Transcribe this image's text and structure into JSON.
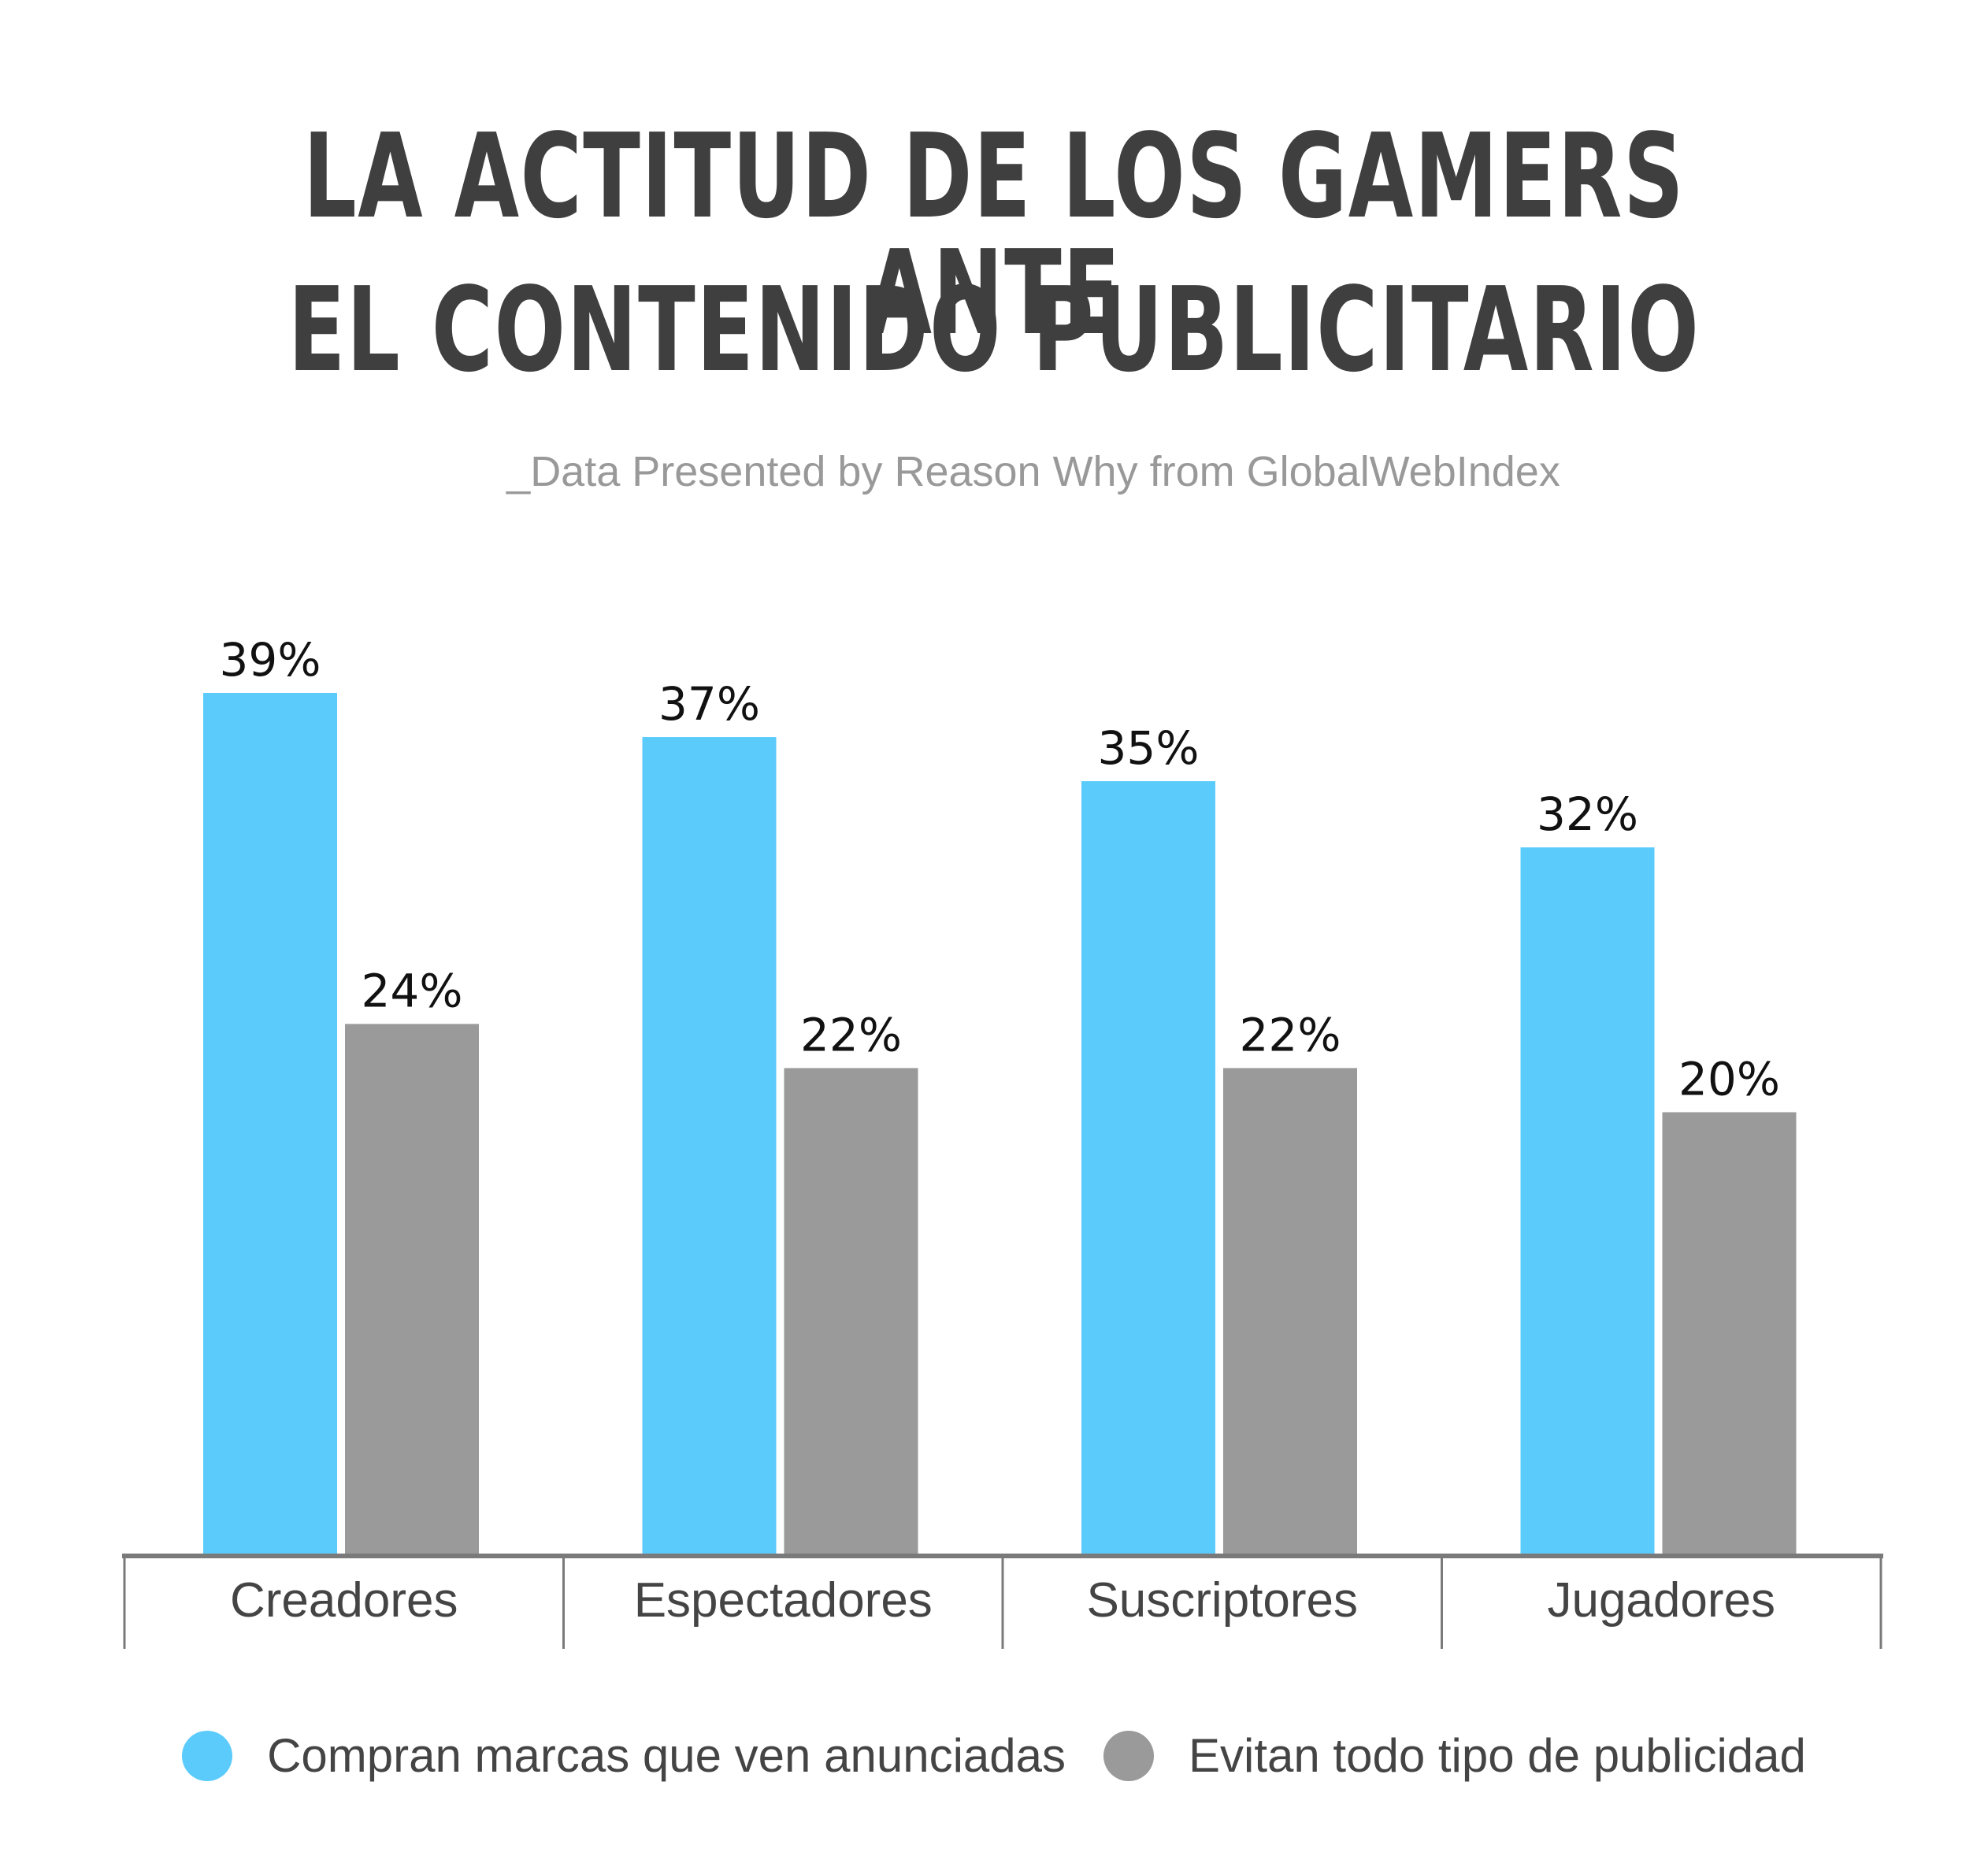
{
  "title_line1": "LA ACTITUD DE LOS GAMERS ANTE",
  "title_line2": "EL CONTENIDO PUBLICITARIO",
  "subtitle": "_Data Presented by Reason Why from GlobalWebIndex",
  "chart_data": {
    "type": "bar",
    "title": "LA ACTITUD DE LOS GAMERS ANTE EL CONTENIDO PUBLICITARIO",
    "subtitle": "_Data Presented by Reason Why from GlobalWebIndex",
    "categories": [
      "Creadores",
      "Espectadores",
      "Suscriptores",
      "Jugadores"
    ],
    "series": [
      {
        "name": "Compran marcas que ven anunciadas",
        "color": "#5bcbfc",
        "values": [
          39,
          37,
          35,
          32
        ],
        "labels": [
          "39%",
          "37%",
          "35%",
          "32%"
        ]
      },
      {
        "name": "Evitan todo tipo de publicidad",
        "color": "#9a9a9a",
        "values": [
          24,
          22,
          22,
          20
        ],
        "labels": [
          "24%",
          "22%",
          "22%",
          "20%"
        ]
      }
    ],
    "ylim": [
      0,
      40
    ],
    "grid": false,
    "legend": "bottom",
    "xlabel": "",
    "ylabel": ""
  }
}
